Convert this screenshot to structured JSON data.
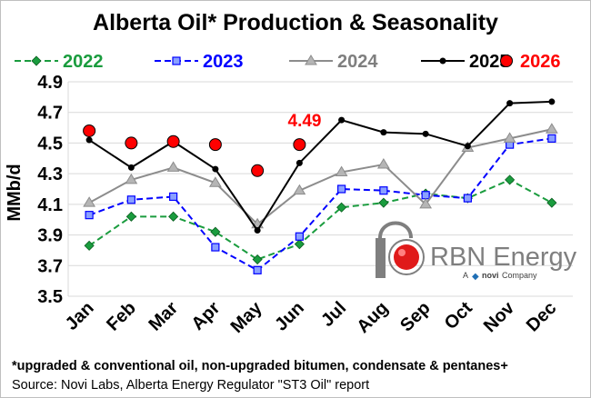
{
  "chart_data": {
    "type": "line",
    "title": "Alberta  Oil* Production & Seasonality",
    "ylabel": "MMb/d",
    "ylim": [
      3.5,
      4.9
    ],
    "yticks": [
      "4.9",
      "4.7",
      "4.5",
      "4.3",
      "4.1",
      "3.9",
      "3.7",
      "3.5"
    ],
    "categories": [
      "Jan",
      "Feb",
      "Mar",
      "Apr",
      "May",
      "Jun",
      "Jul",
      "Aug",
      "Sep",
      "Oct",
      "Nov",
      "Dec"
    ],
    "grid": true,
    "legend_position": "top",
    "series": [
      {
        "name": "2022",
        "color": "#1a9c3e",
        "style": "dashed",
        "marker": "diamond",
        "values": [
          3.83,
          4.02,
          4.02,
          3.92,
          3.74,
          3.84,
          4.08,
          4.11,
          4.17,
          4.14,
          4.26,
          4.11
        ]
      },
      {
        "name": "2023",
        "color": "#0000ff",
        "style": "dashed",
        "marker": "square",
        "values": [
          4.03,
          4.13,
          4.15,
          3.82,
          3.67,
          3.89,
          4.2,
          4.19,
          4.16,
          4.14,
          4.49,
          4.53
        ]
      },
      {
        "name": "2024",
        "color": "#8c8c8c",
        "style": "solid",
        "marker": "triangle",
        "values": [
          4.11,
          4.26,
          4.34,
          4.24,
          3.97,
          4.19,
          4.31,
          4.36,
          4.1,
          4.47,
          4.53,
          4.59
        ]
      },
      {
        "name": "2025",
        "color": "#000000",
        "style": "solid",
        "marker": "circle",
        "values": [
          4.52,
          4.34,
          4.51,
          4.33,
          3.93,
          4.37,
          4.65,
          4.57,
          4.56,
          4.48,
          4.76,
          4.77
        ]
      },
      {
        "name": "2026",
        "color": "#ff0000",
        "style": "markers",
        "marker": "big-circle",
        "values": [
          4.58,
          4.5,
          4.51,
          4.49,
          4.32,
          4.49,
          null,
          null,
          null,
          null,
          null,
          null
        ]
      }
    ],
    "annotation": {
      "text": "4.49"
    }
  },
  "footnote": {
    "line1": "*upgraded & conventional oil,  non-upgraded bitumen, condensate & pentanes+",
    "line2": "Source: Novi Labs, Alberta Energy Regulator \"ST3 Oil\" report"
  },
  "logo": {
    "brand": "RBN Energy",
    "sub_a": "A",
    "sub_novi": "novi",
    "sub_company": "Company"
  }
}
